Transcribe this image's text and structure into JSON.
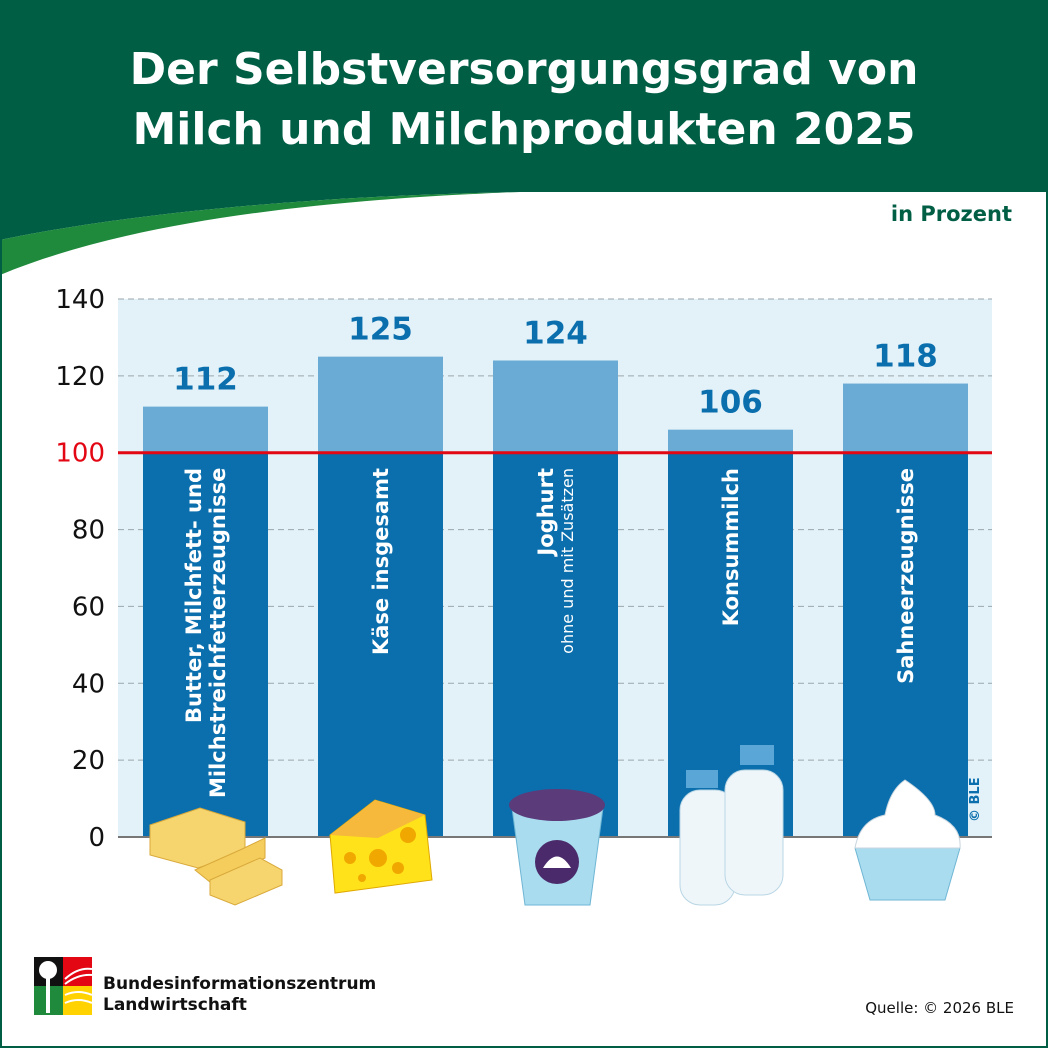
{
  "header": {
    "title_line1": "Der Selbstversorgungsgrad von",
    "title_line2": "Milch und Milchprodukten 2025",
    "unit": "in Prozent"
  },
  "chart_data": {
    "type": "bar",
    "title": "Der Selbstversorgungsgrad von Milch und Milchprodukten 2025",
    "ylabel": "in Prozent",
    "ylim": [
      0,
      140
    ],
    "yticks": [
      0,
      20,
      40,
      60,
      80,
      100,
      120,
      140
    ],
    "reference_line": {
      "value": 100,
      "color": "#e30613"
    },
    "grid": true,
    "categories": [
      {
        "label": "Butter, Milchfett- und",
        "label2": "Milchstreichfetterzeugnisse",
        "sub": ""
      },
      {
        "label": "Käse insgesamt",
        "label2": "",
        "sub": ""
      },
      {
        "label": "Joghurt",
        "label2": "",
        "sub": "ohne und mit Zusätzen"
      },
      {
        "label": "Konsummilch",
        "label2": "",
        "sub": ""
      },
      {
        "label": "Sahneerzeugnisse",
        "label2": "",
        "sub": ""
      }
    ],
    "values": [
      112,
      125,
      124,
      106,
      118
    ],
    "colors": {
      "bar": "#0b6fae",
      "above_100": "#6aabd5",
      "background": "#e3f2f8",
      "value_label": "#0b6fae"
    }
  },
  "icons": [
    "butter-icon",
    "cheese-icon",
    "yogurt-icon",
    "milk-bottles-icon",
    "whipped-cream-icon"
  ],
  "footer": {
    "org_line1": "Bundesinformationszentrum",
    "org_line2": "Landwirtschaft",
    "source": "Quelle: © 2026 BLE",
    "copyright": "© BLE"
  },
  "colors": {
    "header": "#005e45",
    "accent_green": "#1f8a3b"
  }
}
